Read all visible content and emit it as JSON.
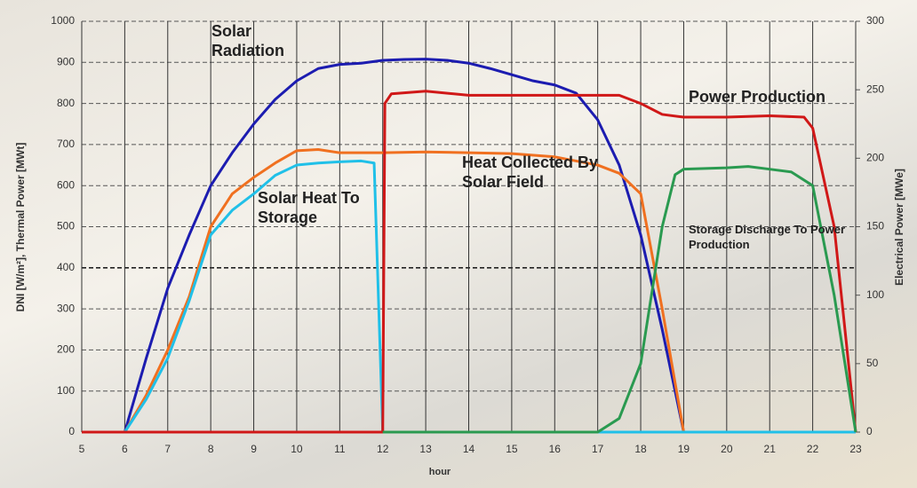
{
  "chart_data": {
    "type": "line",
    "x_label": "hour",
    "y_label": "DNI [W/m²], Thermal Power [MWt]",
    "y2_label": "Electrical Power [MWe]",
    "xlim": [
      5,
      23
    ],
    "xticks": [
      5,
      6,
      7,
      8,
      9,
      10,
      11,
      12,
      13,
      14,
      15,
      16,
      17,
      18,
      19,
      20,
      21,
      22,
      23
    ],
    "ylim": [
      0,
      1000
    ],
    "yticks": [
      0,
      100,
      200,
      300,
      400,
      500,
      600,
      700,
      800,
      900,
      1000
    ],
    "y2lim": [
      0,
      300
    ],
    "y2ticks": [
      0,
      50,
      100,
      150,
      200,
      250,
      300
    ],
    "grid": true,
    "series": [
      {
        "name": "Solar Radiation",
        "color": "#1c1cb0",
        "x": [
          6,
          6.5,
          7,
          7.5,
          8,
          8.5,
          9,
          9.5,
          10,
          10.5,
          11,
          11.5,
          12,
          12.5,
          13,
          13.5,
          14,
          14.5,
          15,
          15.5,
          16,
          16.5,
          17,
          17.5,
          18,
          18.5,
          19
        ],
        "values": [
          0,
          180,
          350,
          480,
          600,
          680,
          750,
          810,
          855,
          885,
          895,
          898,
          905,
          907,
          908,
          905,
          898,
          885,
          870,
          855,
          845,
          825,
          760,
          650,
          480,
          250,
          0
        ]
      },
      {
        "name": "Heat Collected By Solar Field",
        "color": "#f07020",
        "x": [
          6,
          6.5,
          7,
          7.5,
          8,
          8.5,
          9,
          9.5,
          10,
          10.5,
          11,
          12,
          13,
          14,
          15,
          16,
          17,
          17.5,
          18,
          18.5,
          19
        ],
        "values": [
          0,
          90,
          200,
          330,
          500,
          580,
          620,
          655,
          685,
          688,
          680,
          680,
          682,
          680,
          678,
          670,
          650,
          630,
          580,
          300,
          0
        ]
      },
      {
        "name": "Solar Heat To Storage",
        "color": "#20c0e8",
        "x": [
          6,
          6.5,
          7,
          7.5,
          8,
          8.5,
          9,
          9.5,
          10,
          10.5,
          11,
          11.5,
          11.8,
          12,
          23
        ],
        "values": [
          0,
          80,
          180,
          320,
          480,
          540,
          580,
          625,
          650,
          655,
          658,
          660,
          655,
          0,
          0
        ]
      },
      {
        "name": "Power Production",
        "color": "#d01818",
        "axis": "y2",
        "x": [
          5,
          12,
          12.05,
          12.2,
          13,
          14,
          16,
          17,
          17.5,
          18,
          18.5,
          19,
          20,
          21,
          21.8,
          22,
          22.5,
          23
        ],
        "values": [
          0,
          0,
          240,
          247,
          249,
          246,
          246,
          246,
          246,
          240,
          232,
          230,
          230,
          231,
          230,
          222,
          150,
          0
        ]
      },
      {
        "name": "Storage Discharge To Power Production",
        "color": "#2a9a50",
        "axis": "y2",
        "x": [
          12,
          17,
          17.5,
          18,
          18.5,
          18.8,
          19,
          20,
          20.5,
          21,
          21.5,
          22,
          22.5,
          23
        ],
        "values": [
          0,
          0,
          10,
          50,
          150,
          188,
          192,
          193,
          194,
          192,
          190,
          180,
          100,
          0
        ]
      }
    ]
  }
}
